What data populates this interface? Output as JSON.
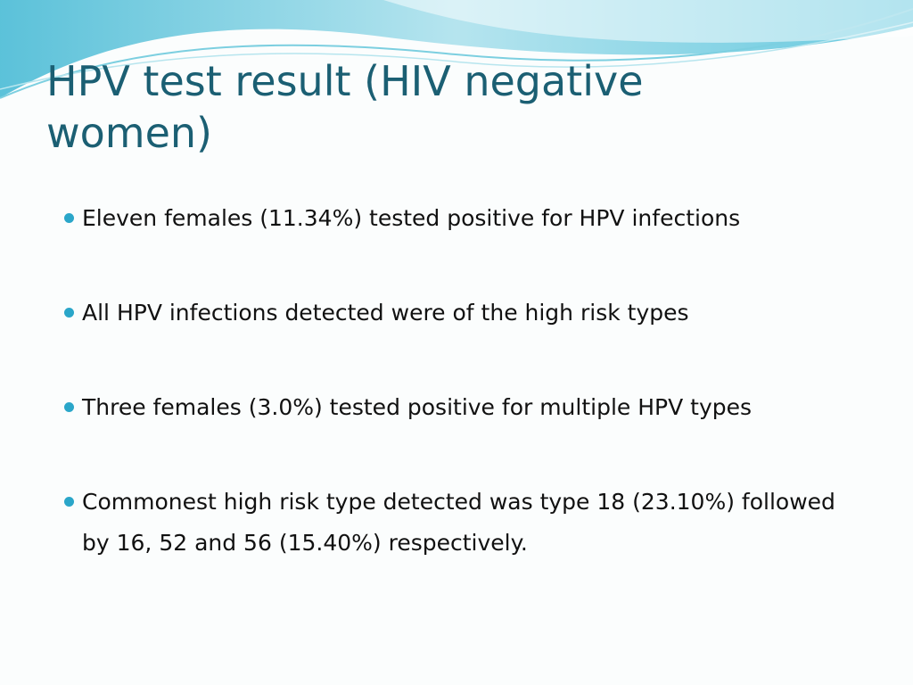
{
  "slide": {
    "title": "HPV test result (HIV negative women)",
    "bullets": [
      "Eleven females (11.34%) tested positive for HPV infections",
      "All HPV infections detected were of the high risk types",
      "Three females (3.0%) tested positive for multiple HPV types",
      "Commonest high risk type detected was type 18 (23.10%) followed by 16, 52 and 56 (15.40%) respectively."
    ]
  }
}
